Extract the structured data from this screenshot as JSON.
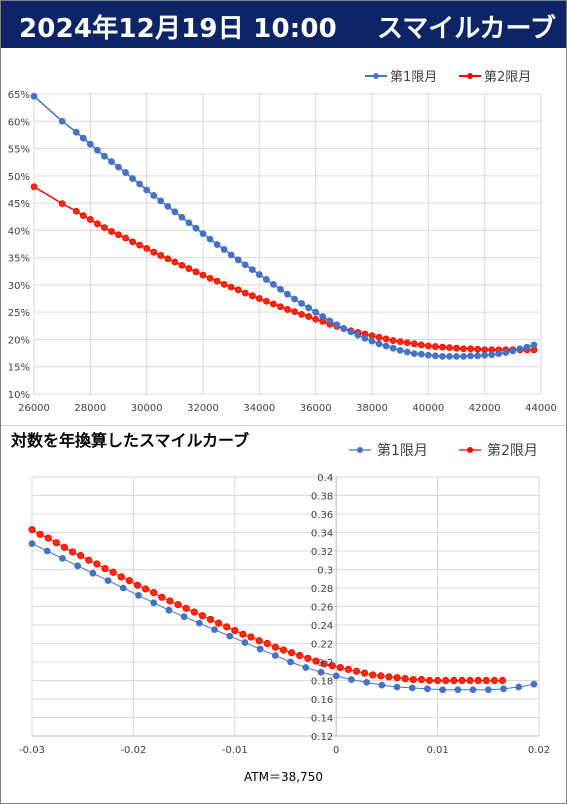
{
  "header": {
    "date": "2024年12月19日 10:00",
    "title": "スマイルカーブ"
  },
  "chart2_heading": "対数を年換算したスマイルカーブ",
  "atm_label": "ATM＝38,750",
  "colors": {
    "series1": "#4472c4",
    "series2": "#ff0000",
    "series2_fill": "#ff2a00",
    "grid": "#d9d9d9"
  },
  "chart_data": [
    {
      "type": "line",
      "title": "",
      "xlim": [
        26000,
        44000
      ],
      "ylim": [
        10,
        65
      ],
      "y_unit": "%",
      "x_ticks": [
        26000,
        28000,
        30000,
        32000,
        34000,
        36000,
        38000,
        40000,
        42000,
        44000
      ],
      "y_ticks": [
        10,
        15,
        20,
        25,
        30,
        35,
        40,
        45,
        50,
        55,
        60,
        65
      ],
      "legend_position": "top-right",
      "series": [
        {
          "name": "第1限月",
          "x": [
            26000,
            27000,
            27500,
            27750,
            28000,
            28250,
            28500,
            28750,
            29000,
            29250,
            29500,
            29750,
            30000,
            30250,
            30500,
            30750,
            31000,
            31250,
            31500,
            31750,
            32000,
            32250,
            32500,
            32750,
            33000,
            33250,
            33500,
            33750,
            34000,
            34250,
            34500,
            34750,
            35000,
            35250,
            35500,
            35750,
            36000,
            36250,
            36500,
            36750,
            37000,
            37250,
            37500,
            37750,
            38000,
            38250,
            38500,
            38750,
            39000,
            39250,
            39500,
            39750,
            40000,
            40250,
            40500,
            40750,
            41000,
            41250,
            41500,
            41750,
            42000,
            42250,
            42500,
            42750,
            43000,
            43250,
            43500,
            43750
          ],
          "y": [
            64.6,
            60.0,
            58.0,
            56.9,
            55.8,
            54.7,
            53.6,
            52.6,
            51.6,
            50.6,
            49.5,
            48.5,
            47.4,
            46.4,
            45.4,
            44.4,
            43.4,
            42.4,
            41.4,
            40.4,
            39.4,
            38.4,
            37.4,
            36.5,
            35.5,
            34.6,
            33.7,
            32.8,
            31.9,
            31.0,
            30.1,
            29.2,
            28.3,
            27.4,
            26.6,
            25.8,
            25.0,
            24.2,
            23.4,
            22.7,
            22.0,
            21.4,
            20.8,
            20.2,
            19.7,
            19.2,
            18.8,
            18.4,
            18.0,
            17.7,
            17.4,
            17.3,
            17.1,
            17.0,
            16.9,
            16.9,
            16.9,
            16.9,
            17.0,
            17.0,
            17.1,
            17.2,
            17.4,
            17.6,
            17.9,
            18.3,
            18.6,
            19.0
          ]
        },
        {
          "name": "第2限月",
          "x": [
            26000,
            27000,
            27500,
            27750,
            28000,
            28250,
            28500,
            28750,
            29000,
            29250,
            29500,
            29750,
            30000,
            30250,
            30500,
            30750,
            31000,
            31250,
            31500,
            31750,
            32000,
            32250,
            32500,
            32750,
            33000,
            33250,
            33500,
            33750,
            34000,
            34250,
            34500,
            34750,
            35000,
            35250,
            35500,
            35750,
            36000,
            36250,
            36500,
            36750,
            37000,
            37250,
            37500,
            37750,
            38000,
            38250,
            38500,
            38750,
            39000,
            39250,
            39500,
            39750,
            40000,
            40250,
            40500,
            40750,
            41000,
            41250,
            41500,
            41750,
            42000,
            42250,
            42500,
            42750,
            43000,
            43250,
            43500,
            43750
          ],
          "y": [
            48.0,
            44.9,
            43.5,
            42.7,
            42.0,
            41.2,
            40.5,
            39.8,
            39.2,
            38.6,
            37.9,
            37.3,
            36.7,
            36.0,
            35.4,
            34.8,
            34.2,
            33.6,
            33.0,
            32.4,
            31.8,
            31.2,
            30.7,
            30.1,
            29.6,
            29.1,
            28.5,
            28.0,
            27.5,
            27.0,
            26.5,
            26.0,
            25.5,
            25.1,
            24.6,
            24.2,
            23.7,
            23.3,
            22.8,
            22.4,
            22.0,
            21.6,
            21.3,
            21.0,
            20.7,
            20.4,
            20.1,
            19.8,
            19.6,
            19.4,
            19.2,
            19.0,
            18.8,
            18.7,
            18.6,
            18.5,
            18.4,
            18.3,
            18.3,
            18.2,
            18.1,
            18.1,
            18.1,
            18.1,
            18.1,
            18.1,
            18.1,
            18.1
          ]
        }
      ]
    },
    {
      "type": "line",
      "title": "",
      "xlim": [
        -0.03,
        0.02
      ],
      "ylim": [
        0.12,
        0.4
      ],
      "x_ticks": [
        -0.03,
        -0.02,
        -0.01,
        0,
        0.01,
        0.02
      ],
      "x_tick_labels": [
        "-0.03",
        "-0.02",
        "-0.01",
        "0",
        "0.01",
        "0.02"
      ],
      "y_ticks": [
        0.12,
        0.14,
        0.16,
        0.18,
        0.2,
        0.22,
        0.24,
        0.26,
        0.28,
        0.3,
        0.32,
        0.34,
        0.36,
        0.38,
        0.4
      ],
      "y_tick_labels": [
        "0.12",
        "0.14",
        "0.16",
        "0.18",
        "0.2",
        "0.22",
        "0.24",
        "0.26",
        "0.28",
        "0.3",
        "0.32",
        "0.34",
        "0.36",
        "0.38",
        "0.4"
      ],
      "legend_position": "top-right",
      "series": [
        {
          "name": "第1限月",
          "x": [
            -0.03,
            -0.0285,
            -0.027,
            -0.0255,
            -0.024,
            -0.0225,
            -0.021,
            -0.0195,
            -0.018,
            -0.0165,
            -0.015,
            -0.0135,
            -0.012,
            -0.0105,
            -0.009,
            -0.0075,
            -0.006,
            -0.0045,
            -0.003,
            -0.0015,
            0.0,
            0.0015,
            0.003,
            0.0045,
            0.006,
            0.0075,
            0.009,
            0.0105,
            0.012,
            0.0135,
            0.015,
            0.0165,
            0.018,
            0.0195
          ],
          "y": [
            0.328,
            0.32,
            0.312,
            0.304,
            0.296,
            0.288,
            0.28,
            0.272,
            0.264,
            0.256,
            0.249,
            0.242,
            0.235,
            0.228,
            0.221,
            0.214,
            0.207,
            0.2,
            0.194,
            0.189,
            0.185,
            0.181,
            0.178,
            0.175,
            0.173,
            0.172,
            0.171,
            0.17,
            0.17,
            0.17,
            0.17,
            0.171,
            0.173,
            0.176
          ]
        },
        {
          "name": "第2限月",
          "x": [
            -0.03,
            -0.0292,
            -0.0284,
            -0.0276,
            -0.0268,
            -0.026,
            -0.0252,
            -0.0244,
            -0.0236,
            -0.0228,
            -0.022,
            -0.0212,
            -0.0204,
            -0.0196,
            -0.0188,
            -0.018,
            -0.0172,
            -0.0164,
            -0.0156,
            -0.0148,
            -0.014,
            -0.0132,
            -0.0124,
            -0.0116,
            -0.0108,
            -0.01,
            -0.0092,
            -0.0084,
            -0.0076,
            -0.0068,
            -0.006,
            -0.0052,
            -0.0044,
            -0.0036,
            -0.0028,
            -0.002,
            -0.0012,
            -0.0004,
            0.0004,
            0.0012,
            0.002,
            0.0028,
            0.0036,
            0.0044,
            0.0052,
            0.006,
            0.0068,
            0.0076,
            0.0084,
            0.0092,
            0.01,
            0.0108,
            0.0116,
            0.0124,
            0.0132,
            0.014,
            0.0148,
            0.0156,
            0.0164
          ],
          "y": [
            0.343,
            0.338,
            0.334,
            0.329,
            0.324,
            0.319,
            0.315,
            0.31,
            0.306,
            0.301,
            0.297,
            0.292,
            0.288,
            0.283,
            0.279,
            0.275,
            0.27,
            0.266,
            0.262,
            0.258,
            0.254,
            0.25,
            0.246,
            0.242,
            0.238,
            0.234,
            0.23,
            0.227,
            0.223,
            0.22,
            0.216,
            0.213,
            0.21,
            0.207,
            0.204,
            0.201,
            0.198,
            0.196,
            0.194,
            0.192,
            0.19,
            0.188,
            0.186,
            0.185,
            0.184,
            0.183,
            0.182,
            0.181,
            0.181,
            0.18,
            0.18,
            0.18,
            0.18,
            0.18,
            0.18,
            0.18,
            0.18,
            0.18,
            0.18
          ]
        }
      ]
    }
  ]
}
